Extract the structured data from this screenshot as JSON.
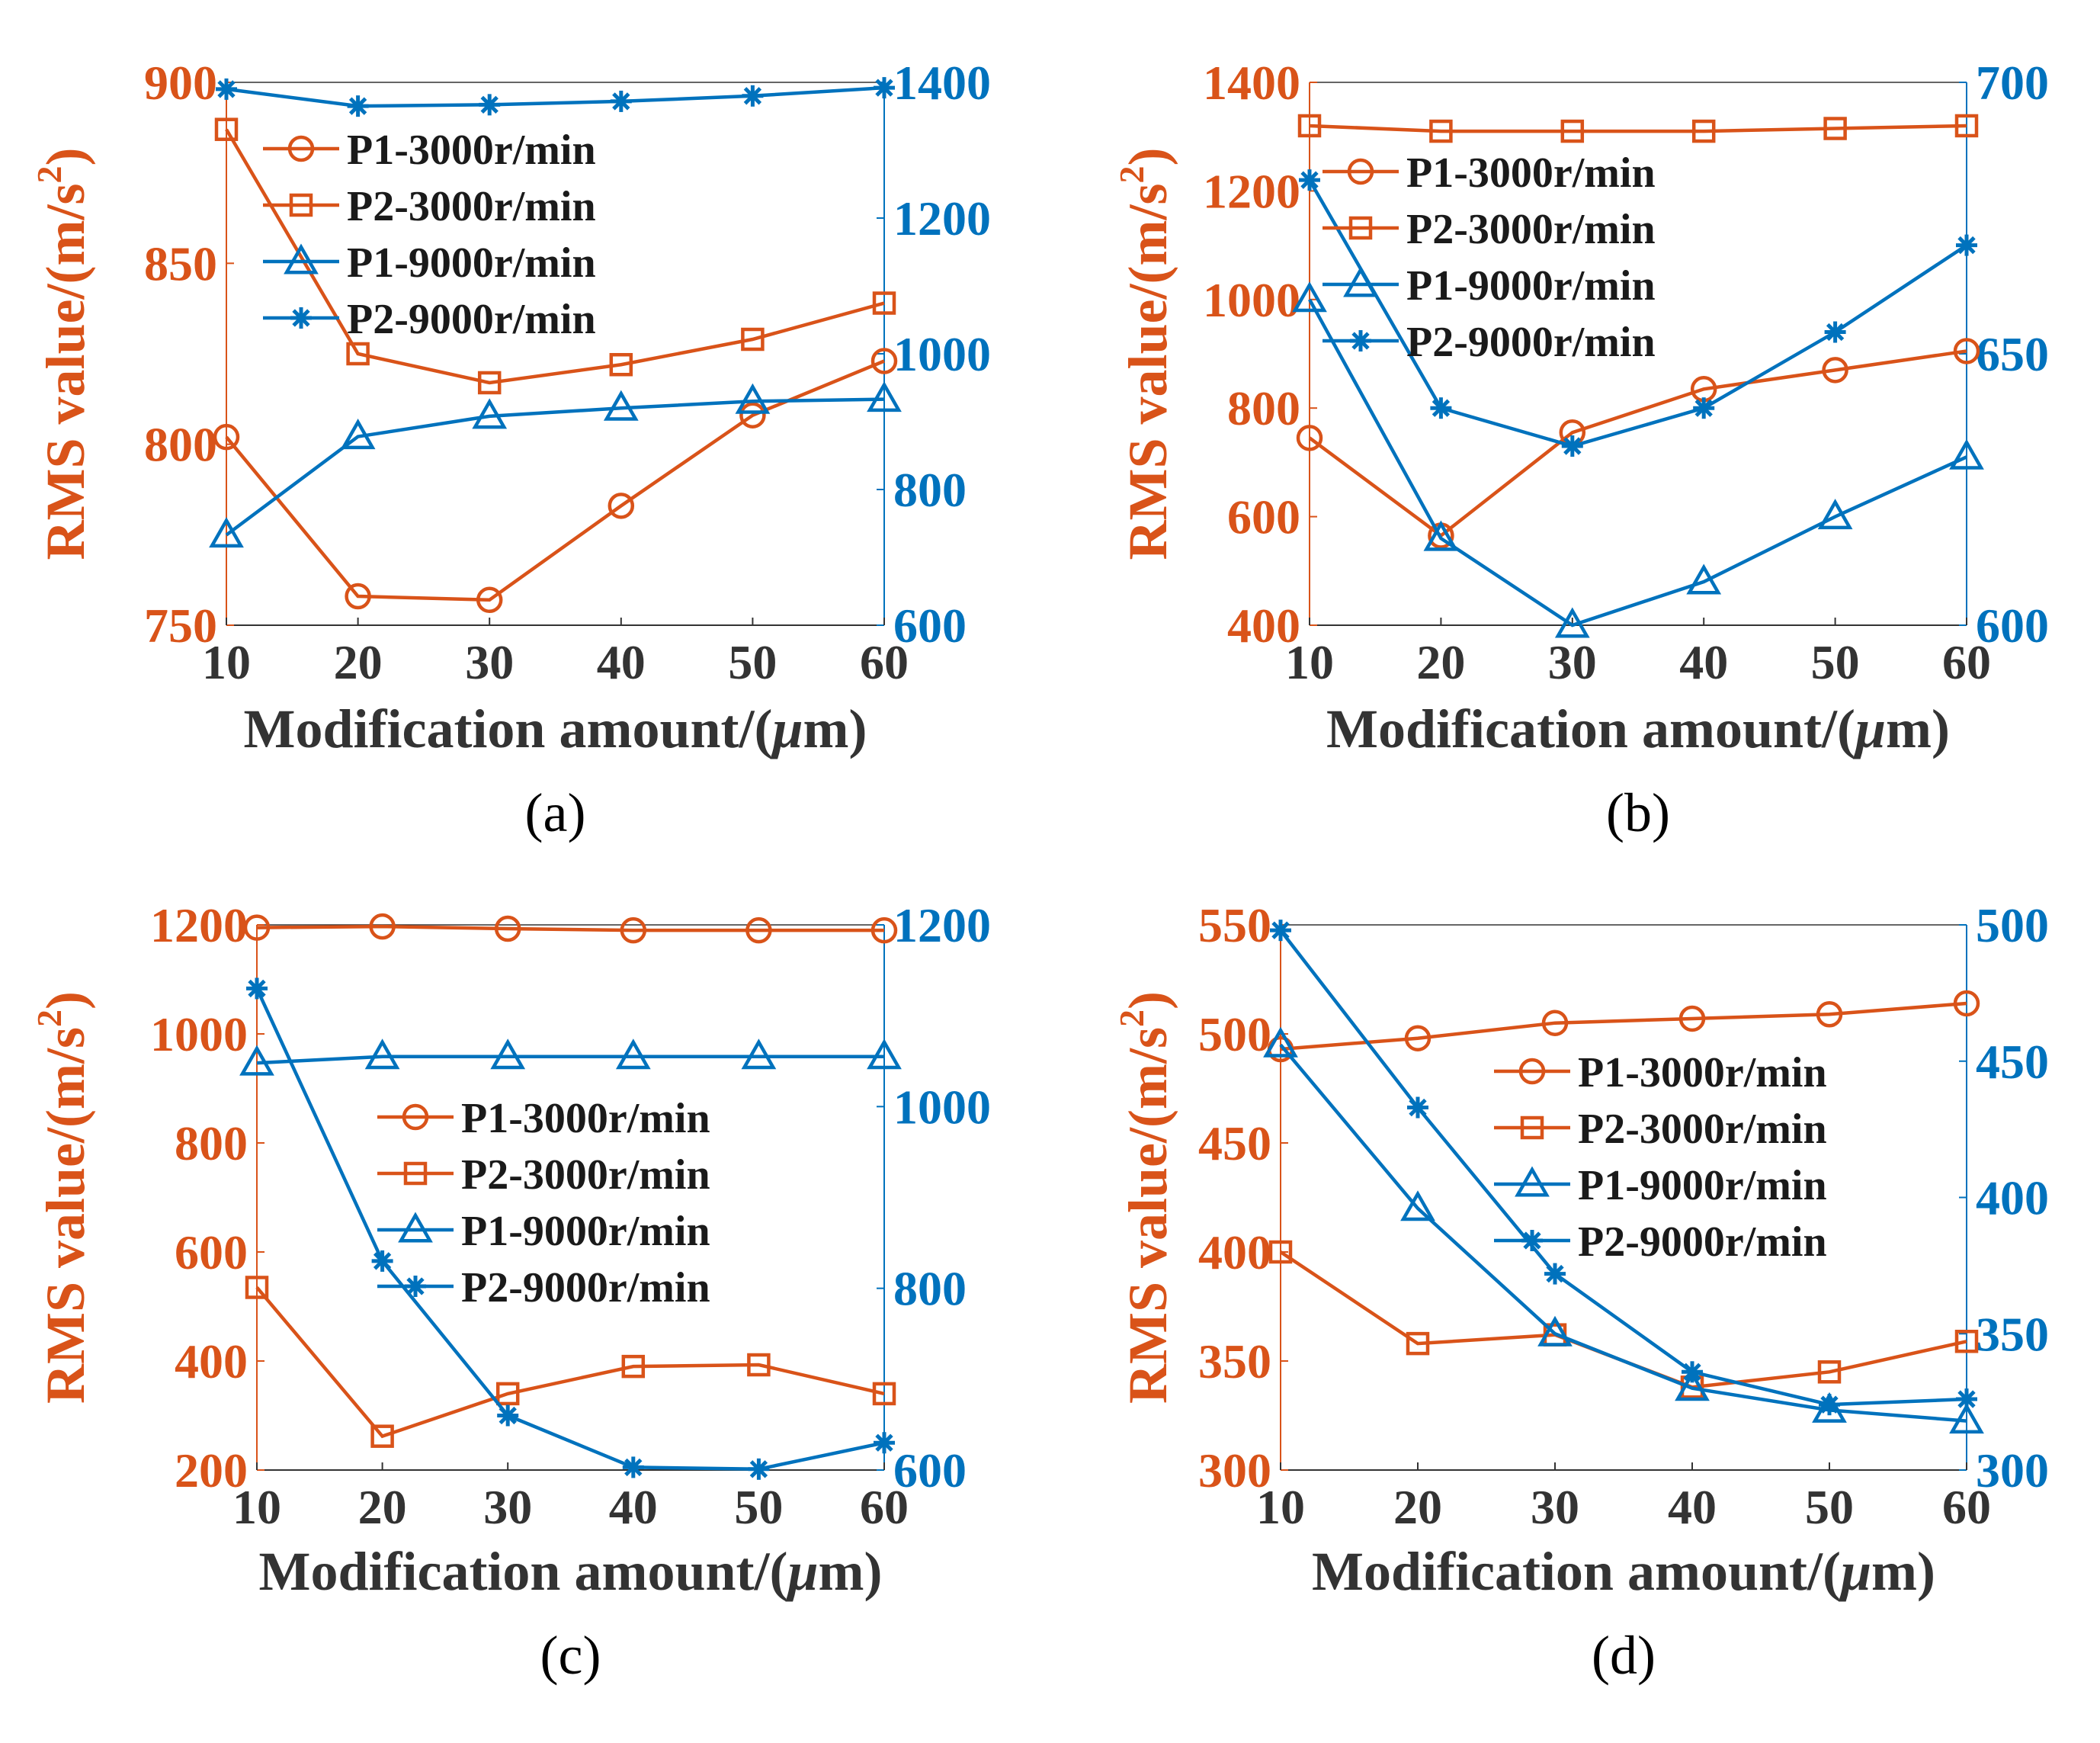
{
  "colors": {
    "orange": "#D95319",
    "blue": "#0072BD",
    "axis_dark": "#333333",
    "text": "#1a1a1a"
  },
  "chart_data": [
    {
      "panel": "(a)",
      "type": "line",
      "x": [
        10,
        20,
        30,
        40,
        50,
        60
      ],
      "xlim": [
        10,
        60
      ],
      "xticks": [
        "10",
        "20",
        "30",
        "40",
        "50",
        "60"
      ],
      "xlabel_text": "Modification amount/(",
      "xlabel_mu": "μ",
      "xlabel_unit": "m)",
      "ylabel_text": "RMS value/(m/s",
      "ylabel_sup": "2",
      "ylabel_close": ")",
      "ylim_left": [
        750,
        900
      ],
      "yticks_left": [
        750,
        800,
        850,
        900
      ],
      "ylim_right": [
        600,
        1400
      ],
      "yticks_right": [
        600,
        800,
        1000,
        1200,
        1400
      ],
      "legend_position": "top-center",
      "series": [
        {
          "name": "P1-3000r/min",
          "axis": "left",
          "marker": "circle",
          "color": "orange",
          "values": [
            802,
            758,
            757,
            783,
            808,
            823
          ]
        },
        {
          "name": "P2-3000r/min",
          "axis": "left",
          "marker": "square",
          "color": "orange",
          "values": [
            887,
            825,
            817,
            822,
            829,
            839
          ]
        },
        {
          "name": "P1-9000r/min",
          "axis": "right",
          "marker": "triangle",
          "color": "blue",
          "values": [
            733,
            878,
            908,
            920,
            930,
            933
          ]
        },
        {
          "name": "P2-9000r/min",
          "axis": "right",
          "marker": "asterisk",
          "color": "blue",
          "values": [
            1390,
            1365,
            1367,
            1372,
            1380,
            1392
          ]
        }
      ]
    },
    {
      "panel": "(b)",
      "type": "line",
      "x": [
        10,
        20,
        30,
        40,
        50,
        60
      ],
      "xlim": [
        10,
        60
      ],
      "xticks": [
        "10",
        "20",
        "30",
        "40",
        "50",
        "60"
      ],
      "xlabel_text": "Modification amount/(",
      "xlabel_mu": "μ",
      "xlabel_unit": "m)",
      "ylabel_text": "RMS value/(m/s",
      "ylabel_sup": "2",
      "ylabel_close": ")",
      "ylim_left": [
        400,
        1400
      ],
      "yticks_left": [
        400,
        600,
        800,
        1000,
        1200,
        1400
      ],
      "ylim_right": [
        600,
        700
      ],
      "yticks_right": [
        600,
        650,
        700
      ],
      "legend_position": "top-center",
      "series": [
        {
          "name": "P1-3000r/min",
          "axis": "left",
          "marker": "circle",
          "color": "orange",
          "values": [
            745,
            565,
            755,
            835,
            870,
            905
          ]
        },
        {
          "name": "P2-3000r/min",
          "axis": "left",
          "marker": "square",
          "color": "orange",
          "values": [
            1320,
            1310,
            1310,
            1310,
            1315,
            1320
          ]
        },
        {
          "name": "P1-9000r/min",
          "axis": "right",
          "marker": "triangle",
          "color": "blue",
          "values": [
            660,
            616,
            600,
            608,
            620,
            631
          ]
        },
        {
          "name": "P2-9000r/min",
          "axis": "right",
          "marker": "asterisk",
          "color": "blue",
          "values": [
            682,
            640,
            633,
            640,
            654,
            670
          ]
        }
      ]
    },
    {
      "panel": "(c)",
      "type": "line",
      "x": [
        10,
        20,
        30,
        40,
        50,
        60
      ],
      "xlim": [
        10,
        60
      ],
      "xticks": [
        "10",
        "20",
        "30",
        "40",
        "50",
        "60"
      ],
      "xlabel_text": "Modification amount/(",
      "xlabel_mu": "μ",
      "xlabel_unit": "m)",
      "ylabel_text": "RMS value/(m/s",
      "ylabel_sup": "2",
      "ylabel_close": ")",
      "ylim_left": [
        200,
        1200
      ],
      "yticks_left": [
        200,
        400,
        600,
        800,
        1000,
        1200
      ],
      "ylim_right": [
        600,
        1200
      ],
      "yticks_right": [
        600,
        800,
        1000,
        1200
      ],
      "legend_position": "center-right",
      "series": [
        {
          "name": "P1-3000r/min",
          "axis": "left",
          "marker": "circle",
          "color": "orange",
          "values": [
            1195,
            1197,
            1193,
            1190,
            1190,
            1190
          ]
        },
        {
          "name": "P2-3000r/min",
          "axis": "left",
          "marker": "square",
          "color": "orange",
          "values": [
            535,
            262,
            340,
            390,
            393,
            340
          ]
        },
        {
          "name": "P1-9000r/min",
          "axis": "right",
          "marker": "triangle",
          "color": "blue",
          "values": [
            1048,
            1055,
            1055,
            1055,
            1055,
            1055
          ]
        },
        {
          "name": "P2-9000r/min",
          "axis": "right",
          "marker": "asterisk",
          "color": "blue",
          "values": [
            1130,
            830,
            660,
            603,
            601,
            630
          ]
        }
      ]
    },
    {
      "panel": "(d)",
      "type": "line",
      "x": [
        10,
        20,
        30,
        40,
        50,
        60
      ],
      "xlim": [
        10,
        60
      ],
      "xticks": [
        "10",
        "20",
        "30",
        "40",
        "50",
        "60"
      ],
      "xlabel_text": "Modification amount/(",
      "xlabel_mu": "μ",
      "xlabel_unit": "m)",
      "ylabel_text": "RMS value/(m/s",
      "ylabel_sup": "2",
      "ylabel_close": ")",
      "ylim_left": [
        300,
        550
      ],
      "yticks_left": [
        300,
        350,
        400,
        450,
        500,
        550
      ],
      "ylim_right": [
        300,
        500
      ],
      "yticks_right": [
        300,
        350,
        400,
        450,
        500
      ],
      "legend_position": "top-right",
      "series": [
        {
          "name": "P1-3000r/min",
          "axis": "left",
          "marker": "circle",
          "color": "orange",
          "values": [
            493,
            498,
            505,
            507,
            509,
            514
          ]
        },
        {
          "name": "P2-3000r/min",
          "axis": "left",
          "marker": "square",
          "color": "orange",
          "values": [
            400,
            358,
            362,
            338,
            345,
            359
          ]
        },
        {
          "name": "P1-9000r/min",
          "axis": "right",
          "marker": "triangle",
          "color": "blue",
          "values": [
            456,
            396,
            350,
            330,
            322,
            318
          ]
        },
        {
          "name": "P2-9000r/min",
          "axis": "right",
          "marker": "asterisk",
          "color": "blue",
          "values": [
            498,
            433,
            372,
            336,
            324,
            326
          ]
        }
      ]
    }
  ]
}
